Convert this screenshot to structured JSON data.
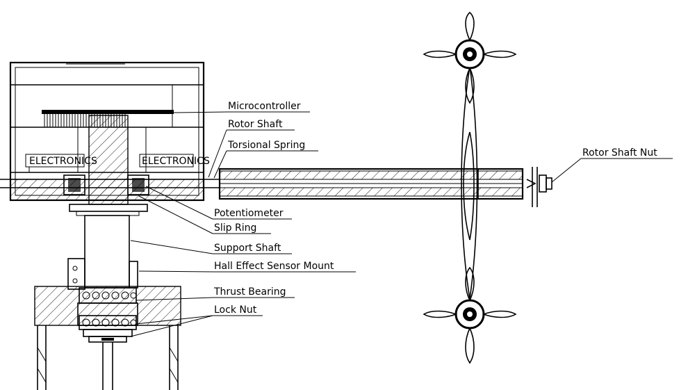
{
  "labels": {
    "microcontroller": "Microcontroller",
    "rotor_shaft": "Rotor Shaft",
    "torsional_spring": "Torsional Spring",
    "rotor_shaft_nut": "Rotor Shaft Nut",
    "potentiometer": "Potentiometer",
    "slip_ring": "Slip Ring",
    "support_shaft": "Support Shaft",
    "hall_effect_sensor_mount": "Hall Effect Sensor Mount",
    "thrust_bearing": "Thrust Bearing",
    "lock_nut": "Lock Nut",
    "electronics_left": "ELECTRONICS",
    "electronics_right": "ELECTRONICS"
  }
}
